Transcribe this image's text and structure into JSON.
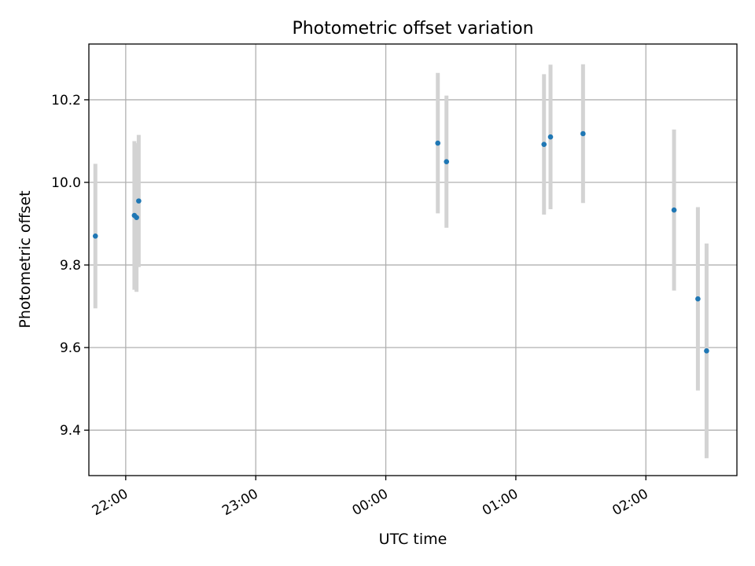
{
  "chart_data": {
    "type": "scatter",
    "title": "Photometric offset variation",
    "xlabel": "UTC time",
    "ylabel": "Photometric offset",
    "xlim": [
      "21:43",
      "02:42"
    ],
    "ylim": [
      9.29,
      10.335
    ],
    "grid": true,
    "x_ticks": [
      "22:00",
      "23:00",
      "00:00",
      "01:00",
      "02:00"
    ],
    "y_ticks": [
      9.4,
      9.6,
      9.8,
      10.0,
      10.2
    ],
    "y_tick_labels": [
      "9.4",
      "9.6",
      "9.8",
      "10.0",
      "10.2"
    ],
    "colors": {
      "point": "#1f77b4",
      "errorbar": "#d3d3d3"
    },
    "series": [
      {
        "points": [
          {
            "x": "21:46",
            "y": 9.87,
            "err": 0.175
          },
          {
            "x": "22:04",
            "y": 9.92,
            "err": 0.18
          },
          {
            "x": "22:05",
            "y": 9.915,
            "err": 0.18
          },
          {
            "x": "22:06",
            "y": 9.955,
            "err": 0.16
          },
          {
            "x": "00:24",
            "y": 10.095,
            "err": 0.17
          },
          {
            "x": "00:28",
            "y": 10.05,
            "err": 0.16
          },
          {
            "x": "01:13",
            "y": 10.092,
            "err": 0.17
          },
          {
            "x": "01:16",
            "y": 10.11,
            "err": 0.175
          },
          {
            "x": "01:31",
            "y": 10.118,
            "err": 0.168
          },
          {
            "x": "02:13",
            "y": 9.933,
            "err": 0.195
          },
          {
            "x": "02:24",
            "y": 9.718,
            "err": 0.222
          },
          {
            "x": "02:28",
            "y": 9.592,
            "err": 0.26
          }
        ]
      }
    ]
  }
}
